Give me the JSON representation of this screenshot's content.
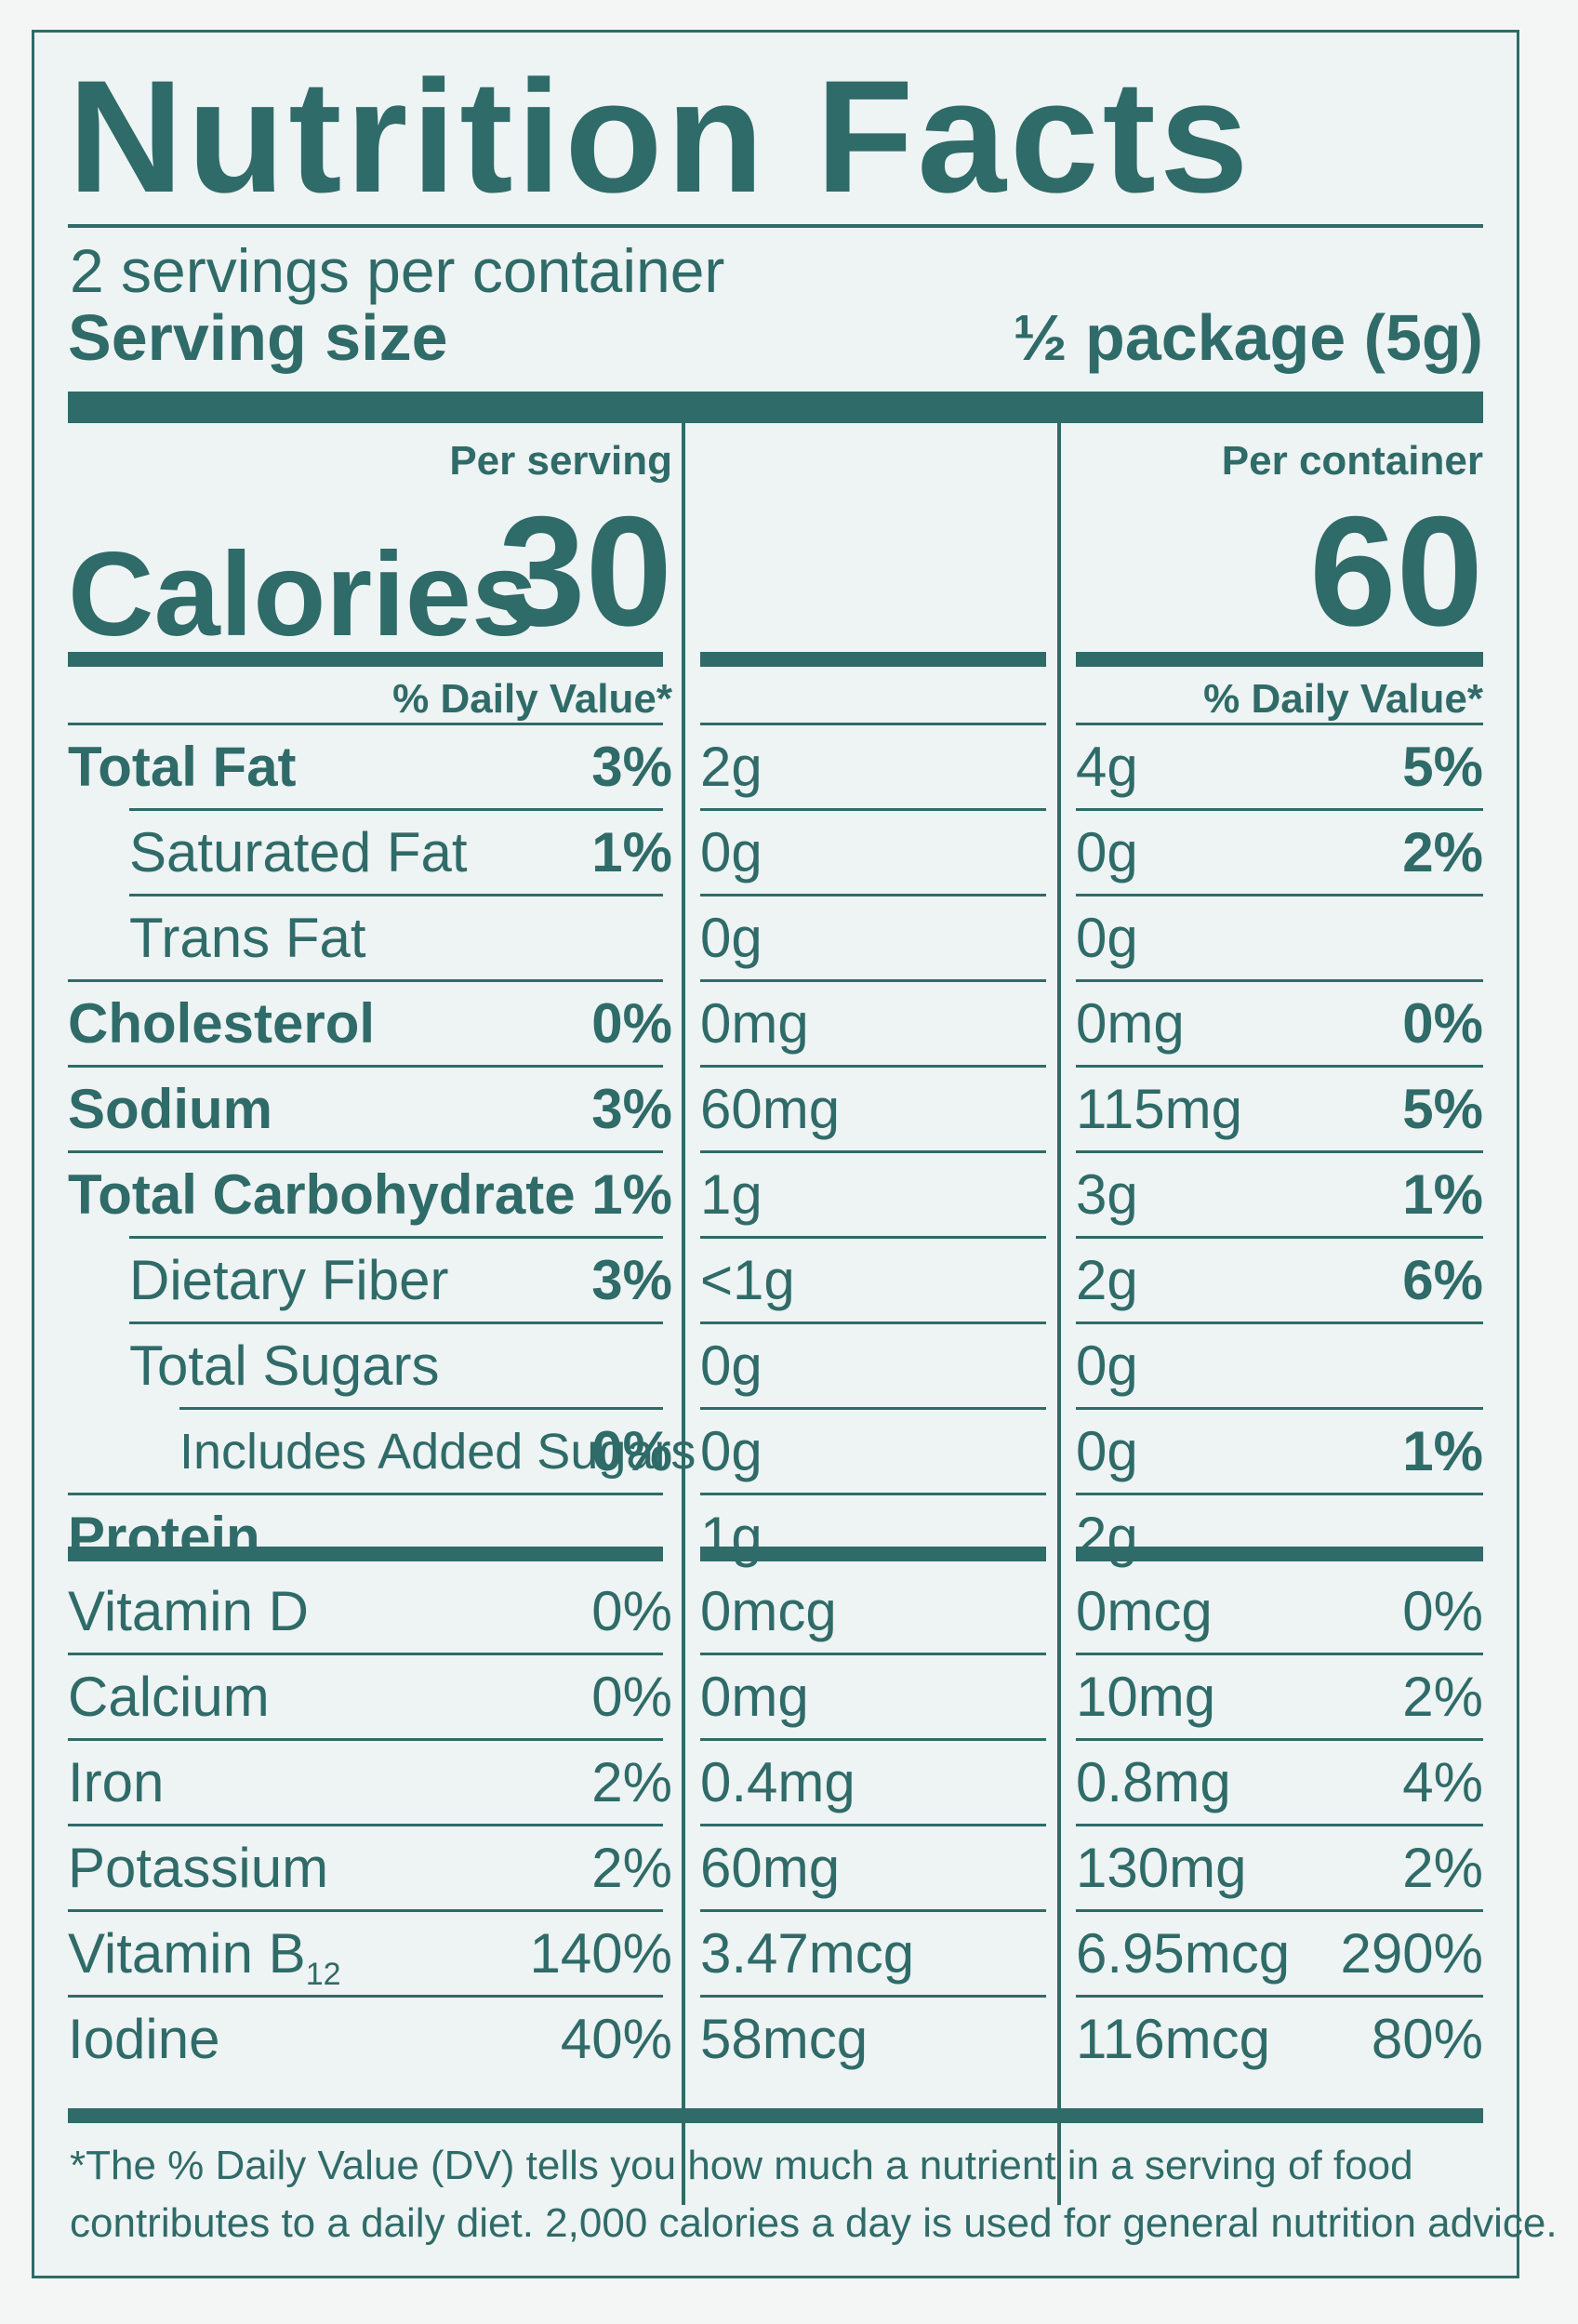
{
  "title": "Nutrition Facts",
  "servings_per_container": "2 servings per container",
  "serving_size_label": "Serving size",
  "serving_size_value": "½ package (5g)",
  "calories_label": "Calories",
  "columns": [
    {
      "header": "Per serving",
      "calories": "30",
      "dv_header": "% Daily Value*"
    },
    {
      "header": "Per container",
      "calories": "60",
      "dv_header": "% Daily Value*"
    }
  ],
  "nutrients": [
    {
      "label": "Total Fat",
      "bold": true,
      "indent": 0,
      "serving": {
        "amount": "2g",
        "dv": "3%"
      },
      "container": {
        "amount": "4g",
        "dv": "5%"
      }
    },
    {
      "label": "Saturated Fat",
      "bold": false,
      "indent": 1,
      "serving": {
        "amount": "0g",
        "dv": "1%"
      },
      "container": {
        "amount": "0g",
        "dv": "2%"
      }
    },
    {
      "label": "Trans Fat",
      "bold": false,
      "indent": 1,
      "serving": {
        "amount": "0g",
        "dv": ""
      },
      "container": {
        "amount": "0g",
        "dv": ""
      }
    },
    {
      "label": "Cholesterol",
      "bold": true,
      "indent": 0,
      "serving": {
        "amount": "0mg",
        "dv": "0%"
      },
      "container": {
        "amount": "0mg",
        "dv": "0%"
      }
    },
    {
      "label": "Sodium",
      "bold": true,
      "indent": 0,
      "serving": {
        "amount": "60mg",
        "dv": "3%"
      },
      "container": {
        "amount": "115mg",
        "dv": "5%"
      }
    },
    {
      "label": "Total Carbohydrate",
      "bold": true,
      "indent": 0,
      "serving": {
        "amount": "1g",
        "dv": "1%"
      },
      "container": {
        "amount": "3g",
        "dv": "1%"
      }
    },
    {
      "label": "Dietary Fiber",
      "bold": false,
      "indent": 1,
      "serving": {
        "amount": "<1g",
        "dv": "3%"
      },
      "container": {
        "amount": "2g",
        "dv": "6%"
      }
    },
    {
      "label": "Total Sugars",
      "bold": false,
      "indent": 1,
      "serving": {
        "amount": "0g",
        "dv": ""
      },
      "container": {
        "amount": "0g",
        "dv": ""
      }
    },
    {
      "label": "Includes Added Sugars",
      "bold": false,
      "indent": 2,
      "serving": {
        "amount": "0g",
        "dv": "0%"
      },
      "container": {
        "amount": "0g",
        "dv": "1%"
      }
    },
    {
      "label": "Protein",
      "bold": true,
      "indent": 0,
      "serving": {
        "amount": "1g",
        "dv": ""
      },
      "container": {
        "amount": "2g",
        "dv": ""
      }
    }
  ],
  "vitamins": [
    {
      "label": "Vitamin D",
      "sub": "",
      "serving": {
        "amount": "0mcg",
        "dv": "0%"
      },
      "container": {
        "amount": "0mcg",
        "dv": "0%"
      }
    },
    {
      "label": "Calcium",
      "sub": "",
      "serving": {
        "amount": "0mg",
        "dv": "0%"
      },
      "container": {
        "amount": "10mg",
        "dv": "2%"
      }
    },
    {
      "label": "Iron",
      "sub": "",
      "serving": {
        "amount": "0.4mg",
        "dv": "2%"
      },
      "container": {
        "amount": "0.8mg",
        "dv": "4%"
      }
    },
    {
      "label": "Potassium",
      "sub": "",
      "serving": {
        "amount": "60mg",
        "dv": "2%"
      },
      "container": {
        "amount": "130mg",
        "dv": "2%"
      }
    },
    {
      "label": "Vitamin B",
      "sub": "12",
      "serving": {
        "amount": "3.47mcg",
        "dv": "140%"
      },
      "container": {
        "amount": "6.95mcg",
        "dv": "290%"
      }
    },
    {
      "label": "Iodine",
      "sub": "",
      "serving": {
        "amount": "58mcg",
        "dv": "40%"
      },
      "container": {
        "amount": "116mcg",
        "dv": "80%"
      }
    }
  ],
  "footnote_line1": "*The % Daily Value (DV) tells you how much a nutrient in a serving of food",
  "footnote_line2": "contributes to a daily diet. 2,000 calories a day is used for general nutrition advice.",
  "colors": {
    "ink": "#2f6b68",
    "background": "#eef3f3"
  }
}
